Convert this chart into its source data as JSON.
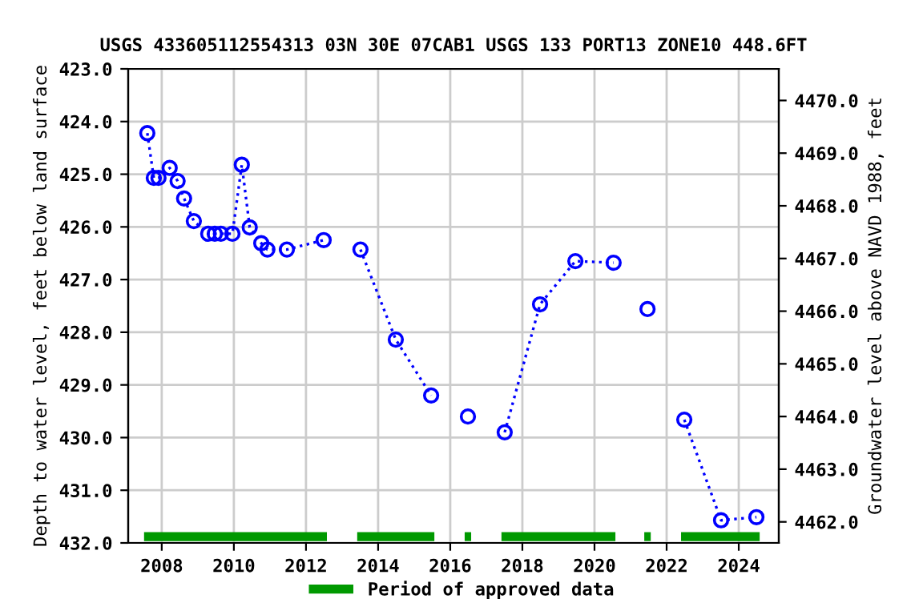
{
  "chart_data": {
    "type": "line",
    "title": "USGS 433605112554313 03N 30E 07CAB1 USGS 133 PORT13 ZONE10 448.6FT",
    "ylabel": "Depth to water level, feet below land surface",
    "y2label": "Groundwater level above NAVD 1988, feet",
    "marker": "circle",
    "line_style": "dotted",
    "grid": true,
    "legend": "bottom",
    "series": [
      {
        "color": "#0000ff",
        "x": [
          2007.6,
          2007.78,
          2007.91,
          2008.22,
          2008.44,
          2008.62,
          2008.89,
          2009.29,
          2009.47,
          2009.64,
          2009.96,
          2010.22,
          2010.44,
          2010.76,
          2010.93,
          2011.47,
          2012.49
        ],
        "values": [
          424.22,
          425.07,
          425.07,
          424.88,
          425.13,
          425.46,
          425.89,
          426.13,
          426.13,
          426.13,
          426.13,
          424.82,
          426.01,
          426.31,
          426.43,
          426.43,
          426.25
        ]
      },
      {
        "color": "#0000ff",
        "x": [
          2013.51,
          2014.49,
          2015.47
        ],
        "values": [
          426.43,
          428.14,
          429.2
        ]
      },
      {
        "color": "#0000ff",
        "x": [
          2016.49
        ],
        "values": [
          429.6
        ]
      },
      {
        "color": "#0000ff",
        "x": [
          2017.51,
          2018.49,
          2019.47,
          2020.53
        ],
        "values": [
          429.9,
          427.47,
          426.65,
          426.68
        ]
      },
      {
        "color": "#0000ff",
        "x": [
          2021.47
        ],
        "values": [
          427.56
        ]
      },
      {
        "color": "#0000ff",
        "x": [
          2022.49,
          2023.51,
          2024.49
        ],
        "values": [
          429.66,
          431.57,
          431.51
        ]
      },
      {
        "name": "Period of approved data",
        "color": "#009900",
        "marker": "none",
        "line_style": "solid",
        "x": [
          2007.51,
          2012.58
        ],
        "values": [
          431.88,
          431.88
        ]
      },
      {
        "color": "#009900",
        "marker": "none",
        "line_style": "solid",
        "x": [
          2013.42,
          2015.56
        ],
        "values": [
          431.88,
          431.88
        ]
      },
      {
        "color": "#009900",
        "marker": "none",
        "line_style": "solid",
        "x": [
          2016.4,
          2016.58
        ],
        "values": [
          431.88,
          431.88
        ]
      },
      {
        "color": "#009900",
        "marker": "none",
        "line_style": "solid",
        "x": [
          2017.42,
          2020.58
        ],
        "values": [
          431.88,
          431.88
        ]
      },
      {
        "color": "#009900",
        "marker": "none",
        "line_style": "solid",
        "x": [
          2021.38,
          2021.56
        ],
        "values": [
          431.88,
          431.88
        ]
      },
      {
        "color": "#009900",
        "marker": "none",
        "line_style": "solid",
        "x": [
          2022.4,
          2024.58
        ],
        "values": [
          431.88,
          431.88
        ]
      }
    ],
    "xlim": [
      2007.07,
      2025.11
    ],
    "xticks": [
      2008,
      2010,
      2012,
      2014,
      2016,
      2018,
      2020,
      2022,
      2024
    ],
    "ylim": [
      432,
      423
    ],
    "yticks": [
      {
        "value": 423,
        "label": "423.0"
      },
      {
        "value": 424,
        "label": "424.0"
      },
      {
        "value": 425,
        "label": "425.0"
      },
      {
        "value": 426,
        "label": "426.0"
      },
      {
        "value": 427,
        "label": "427.0"
      },
      {
        "value": 428,
        "label": "428.0"
      },
      {
        "value": 429,
        "label": "429.0"
      },
      {
        "value": 430,
        "label": "430.0"
      },
      {
        "value": 431,
        "label": "431.0"
      },
      {
        "value": 432,
        "label": "432.0"
      }
    ],
    "y2lim": [
      4461.6,
      4470.6
    ],
    "y2ticks": [
      {
        "value": 4462,
        "label": "4462.0"
      },
      {
        "value": 4463,
        "label": "4463.0"
      },
      {
        "value": 4464,
        "label": "4464.0"
      },
      {
        "value": 4465,
        "label": "4465.0"
      },
      {
        "value": 4466,
        "label": "4466.0"
      },
      {
        "value": 4467,
        "label": "4467.0"
      },
      {
        "value": 4468,
        "label": "4468.0"
      },
      {
        "value": 4469,
        "label": "4469.0"
      },
      {
        "value": 4470,
        "label": "4470.0"
      }
    ]
  }
}
